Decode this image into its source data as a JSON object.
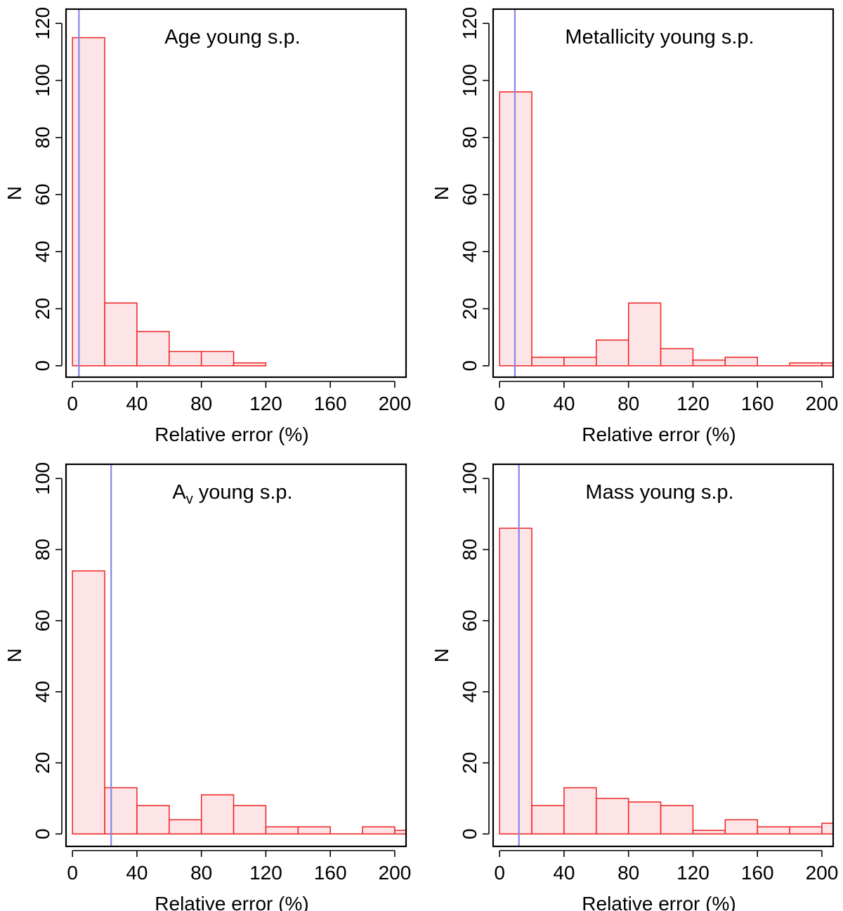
{
  "figure": {
    "layout": "2x2 grid of histograms"
  },
  "chart_data": [
    {
      "type": "bar",
      "panel": "top-left",
      "title": "Age young s.p.",
      "title_sub": "",
      "title_rest": "",
      "xlabel": "Relative error (%)",
      "ylabel": "N",
      "bin_width": 20,
      "bin_starts": [
        0,
        20,
        40,
        60,
        80,
        100
      ],
      "values": [
        115,
        22,
        12,
        5,
        5,
        1
      ],
      "xlim": [
        -4,
        207
      ],
      "ylim": [
        -4,
        125
      ],
      "xticks": [
        0,
        40,
        80,
        120,
        160,
        200
      ],
      "xtick_labels": [
        "0",
        "40",
        "80",
        "120",
        "160",
        "200"
      ],
      "yticks": [
        0,
        20,
        40,
        60,
        80,
        100,
        120
      ],
      "ytick_labels": [
        "0",
        "20",
        "40",
        "60",
        "80",
        "100",
        "120"
      ],
      "reference_line_x": 4,
      "colors": {
        "bar_fill": "#fde4e6",
        "bar_edge": "#ee2222",
        "reference_line": "#8585f0"
      }
    },
    {
      "type": "bar",
      "panel": "top-right",
      "title": "Metallicity young s.p.",
      "title_sub": "",
      "title_rest": "",
      "xlabel": "Relative error (%)",
      "ylabel": "N",
      "bin_width": 20,
      "bin_starts": [
        0,
        20,
        40,
        60,
        80,
        100,
        120,
        140,
        160,
        180,
        200
      ],
      "values": [
        96,
        3,
        3,
        9,
        22,
        6,
        2,
        3,
        0,
        1,
        1
      ],
      "xlim": [
        -4,
        207
      ],
      "ylim": [
        -4,
        125
      ],
      "xticks": [
        0,
        40,
        80,
        120,
        160,
        200
      ],
      "xtick_labels": [
        "0",
        "40",
        "80",
        "120",
        "160",
        "200"
      ],
      "yticks": [
        0,
        20,
        40,
        60,
        80,
        100,
        120
      ],
      "ytick_labels": [
        "0",
        "20",
        "40",
        "60",
        "80",
        "100",
        "120"
      ],
      "reference_line_x": 9.5,
      "colors": {
        "bar_fill": "#fde4e6",
        "bar_edge": "#ee2222",
        "reference_line": "#8585f0"
      }
    },
    {
      "type": "bar",
      "panel": "bottom-left",
      "title": "A",
      "title_sub": "v",
      "title_rest": " young s.p.",
      "xlabel": "Relative error (%)",
      "ylabel": "N",
      "bin_width": 20,
      "bin_starts": [
        0,
        20,
        40,
        60,
        80,
        100,
        120,
        140,
        160,
        180,
        200
      ],
      "values": [
        74,
        13,
        8,
        4,
        11,
        8,
        2,
        2,
        0,
        2,
        1
      ],
      "xlim": [
        -4,
        207
      ],
      "ylim": [
        -3.5,
        104
      ],
      "xticks": [
        0,
        40,
        80,
        120,
        160,
        200
      ],
      "xtick_labels": [
        "0",
        "40",
        "80",
        "120",
        "160",
        "200"
      ],
      "yticks": [
        0,
        20,
        40,
        60,
        80,
        100
      ],
      "ytick_labels": [
        "0",
        "20",
        "40",
        "60",
        "80",
        "100"
      ],
      "reference_line_x": 24,
      "colors": {
        "bar_fill": "#fde4e6",
        "bar_edge": "#ee2222",
        "reference_line": "#8585f0"
      }
    },
    {
      "type": "bar",
      "panel": "bottom-right",
      "title": "Mass young s.p.",
      "title_sub": "",
      "title_rest": "",
      "xlabel": "Relative error (%)",
      "ylabel": "N",
      "bin_width": 20,
      "bin_starts": [
        0,
        20,
        40,
        60,
        80,
        100,
        120,
        140,
        160,
        180,
        200
      ],
      "values": [
        86,
        8,
        13,
        10,
        9,
        8,
        1,
        4,
        2,
        2,
        3
      ],
      "xlim": [
        -4,
        207
      ],
      "ylim": [
        -3.5,
        104
      ],
      "xticks": [
        0,
        40,
        80,
        120,
        160,
        200
      ],
      "xtick_labels": [
        "0",
        "40",
        "80",
        "120",
        "160",
        "200"
      ],
      "yticks": [
        0,
        20,
        40,
        60,
        80,
        100
      ],
      "ytick_labels": [
        "0",
        "20",
        "40",
        "60",
        "80",
        "100"
      ],
      "reference_line_x": 12,
      "colors": {
        "bar_fill": "#fde4e6",
        "bar_edge": "#ee2222",
        "reference_line": "#8585f0"
      }
    }
  ]
}
